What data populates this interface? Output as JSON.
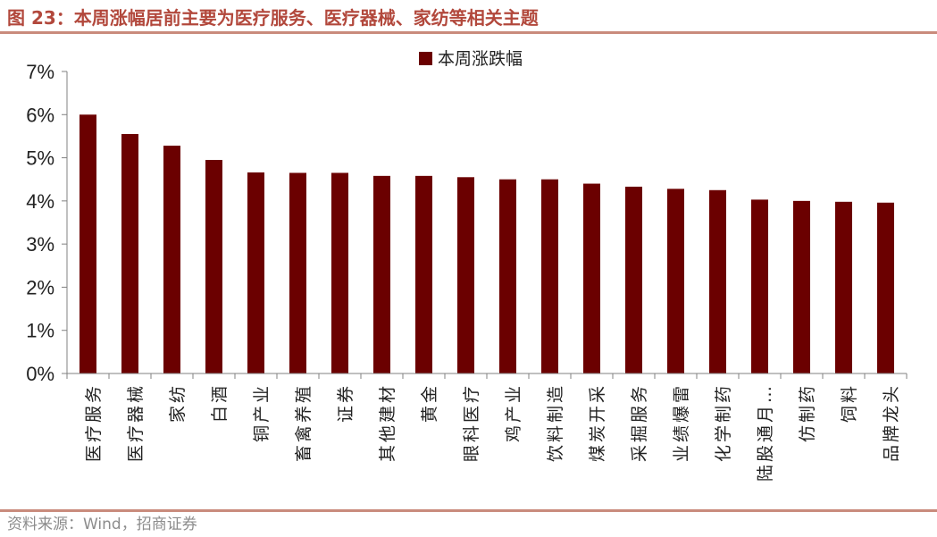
{
  "header": {
    "title": "图 23：本周涨幅居前主要为医疗服务、医疗器械、家纺等相关主题"
  },
  "footer": {
    "source": "资料来源：Wind，招商证券"
  },
  "colors": {
    "bar": "#6b0000",
    "title": "#b2483c",
    "rule": "#c98b7c",
    "axis": "#808080"
  },
  "chart_data": {
    "type": "bar",
    "categories": [
      "医疗服务",
      "医疗器械",
      "家纺",
      "白酒",
      "铜产业",
      "畜禽养殖",
      "证券",
      "其他建材",
      "黄金",
      "眼科医疗",
      "鸡产业",
      "饮料制造",
      "煤炭开采",
      "采掘服务",
      "业绩爆雷",
      "化学制药",
      "陆股通月…",
      "仿制药",
      "饲料",
      "品牌龙头"
    ],
    "series": [
      {
        "name": "本周涨跌幅",
        "values": [
          6.0,
          5.55,
          5.28,
          4.95,
          4.66,
          4.65,
          4.65,
          4.58,
          4.58,
          4.55,
          4.5,
          4.5,
          4.4,
          4.33,
          4.28,
          4.25,
          4.03,
          4.0,
          3.98,
          3.96
        ]
      }
    ],
    "yticks": [
      "0%",
      "1%",
      "2%",
      "3%",
      "4%",
      "5%",
      "6%",
      "7%"
    ],
    "ylim": [
      0,
      7
    ],
    "y_unit": "%",
    "legend_position": "top-center",
    "grid": false
  }
}
